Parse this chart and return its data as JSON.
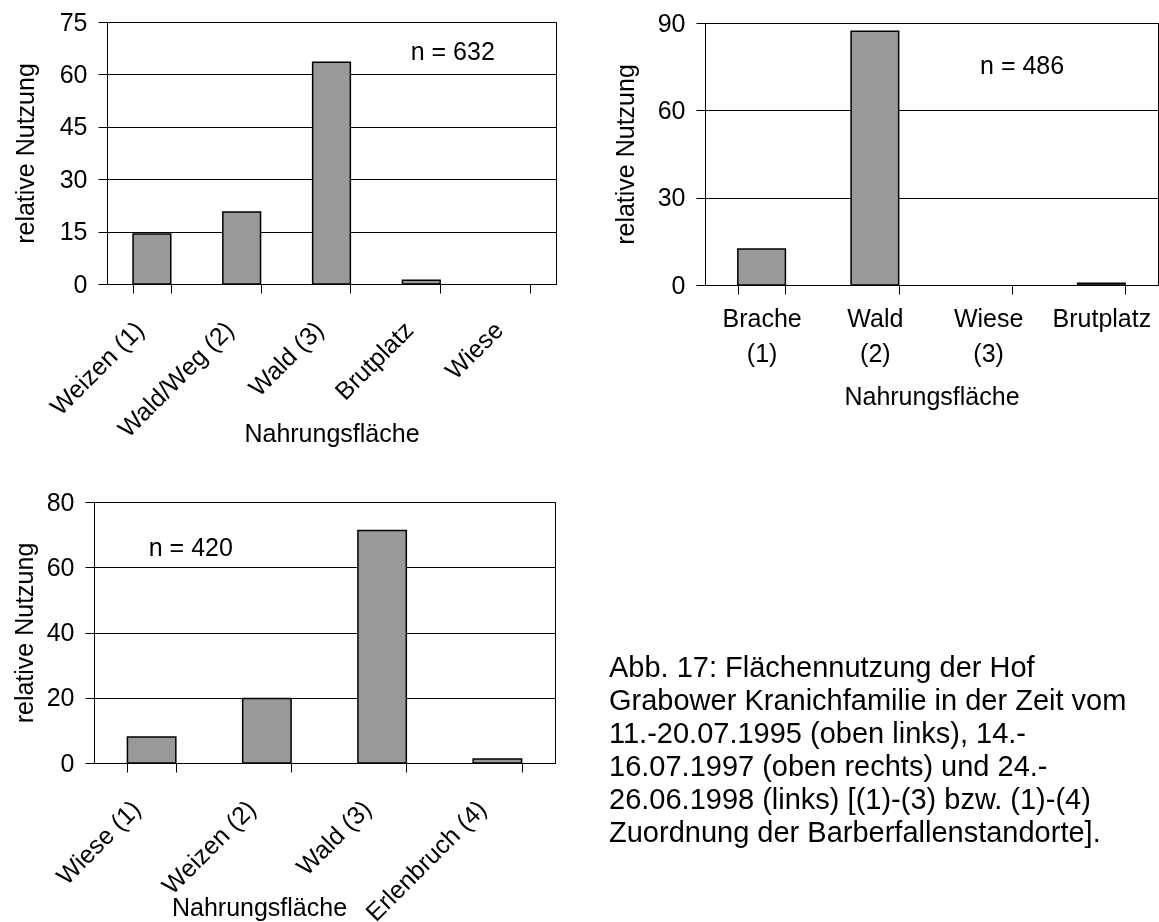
{
  "chart_data": [
    {
      "type": "bar",
      "categories": [
        "Weizen (1)",
        "Wald/Weg (2)",
        "Wald (3)",
        "Brutplatz",
        "Wiese"
      ],
      "values": [
        14.3,
        20.6,
        63.5,
        1.1,
        null
      ],
      "color": "#999999",
      "xlabel": "Nahrungsfläche",
      "ylabel": "relative Nutzung",
      "ylim": [
        0,
        75
      ],
      "yticks": [
        0,
        15,
        30,
        45,
        60,
        75
      ],
      "grid": "y",
      "annotations": [
        "n = 632"
      ]
    },
    {
      "type": "bar",
      "categories": [
        "Brache (1)",
        "Wald (2)",
        "Wiese (3)",
        "Brutplatz"
      ],
      "values": [
        12.4,
        87.2,
        null,
        0.6
      ],
      "color": "#999999",
      "xlabel": "Nahrungsfläche",
      "ylabel": "relative Nutzung",
      "ylim": [
        0,
        90
      ],
      "yticks": [
        0,
        30,
        60,
        90
      ],
      "grid": "y",
      "annotations": [
        "n = 486"
      ]
    },
    {
      "type": "bar",
      "categories": [
        "Wiese (1)",
        "Weizen (2)",
        "Wald (3)",
        "Erlenbruch (4)"
      ],
      "values": [
        8.0,
        19.8,
        71.3,
        1.2
      ],
      "color": "#999999",
      "xlabel": "Nahrungsfläche",
      "ylabel": "relative Nutzung",
      "ylim": [
        0,
        80
      ],
      "yticks": [
        0,
        20,
        40,
        60,
        80
      ],
      "grid": "y",
      "annotations": [
        "n = 420"
      ]
    },
    {
      "type": "other",
      "annotations": [
        "Abb. 17: Flächennutzung der Hof Grabower Kranichfamilie in der Zeit vom 11.-20.07.1995 (oben links), 14.-16.07.1997 (oben rechts) und 24.-26.06.1998 (links) [(1)-(3) bzw. (1)-(4) Zuordnung der Barberfallenstandorte]."
      ]
    }
  ]
}
